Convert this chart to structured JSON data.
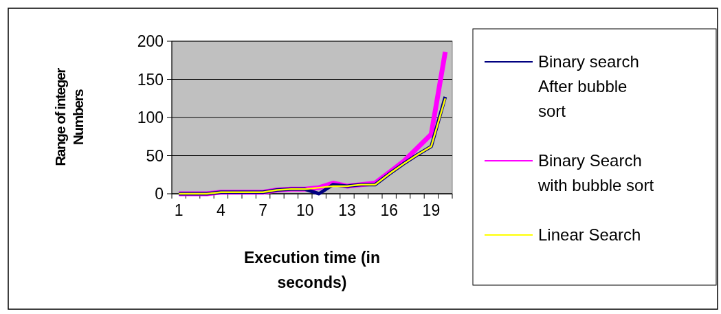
{
  "chart_data": {
    "type": "line",
    "xlabel": "Execution time (in seconds)",
    "ylabel": "Range of integer Numbers",
    "categories": [
      "1",
      null,
      null,
      "4",
      null,
      null,
      "7",
      null,
      null,
      "10",
      null,
      null,
      "13",
      null,
      null,
      "16",
      null,
      null,
      "19",
      null
    ],
    "series": [
      {
        "name": "Binary search After bubble sort",
        "color": "#000080",
        "values": [
          0,
          0,
          0,
          2,
          2,
          2,
          2,
          5,
          6,
          6,
          0,
          12,
          10,
          12,
          12,
          26,
          39,
          51,
          62,
          127
        ]
      },
      {
        "name": "Binary Search with bubble sort",
        "color": "#ff00ff",
        "values": [
          0,
          0,
          0,
          2,
          2,
          2,
          2,
          5,
          6,
          6,
          8,
          14,
          10,
          12,
          14,
          28,
          42,
          60,
          78,
          186
        ]
      },
      {
        "name": "Linear Search",
        "color": "#ffff00",
        "values": [
          0,
          0,
          0,
          2,
          2,
          2,
          2,
          5,
          6,
          6,
          8,
          10,
          10,
          12,
          12,
          26,
          39,
          51,
          62,
          125
        ]
      }
    ],
    "ylim": [
      0,
      200
    ],
    "yticks": [
      0,
      50,
      100,
      150,
      200
    ],
    "grid": "y",
    "legend": "right",
    "marker": "none",
    "line_style": "solid"
  }
}
